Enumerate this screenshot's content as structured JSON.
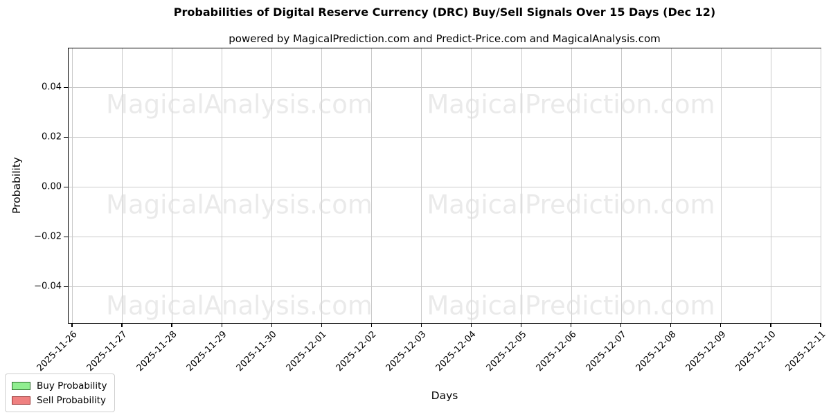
{
  "title": "Probabilities of Digital Reserve Currency (DRC) Buy/Sell Signals Over 15 Days (Dec 12)",
  "subtitle": "powered by MagicalPrediction.com and Predict-Price.com and MagicalAnalysis.com",
  "chart_data": {
    "type": "line",
    "x": [
      "2025-11-26",
      "2025-11-27",
      "2025-11-28",
      "2025-11-29",
      "2025-11-30",
      "2025-12-01",
      "2025-12-02",
      "2025-12-03",
      "2025-12-04",
      "2025-12-05",
      "2025-12-06",
      "2025-12-07",
      "2025-12-08",
      "2025-12-09",
      "2025-12-10",
      "2025-12-11"
    ],
    "series": [
      {
        "name": "Buy Probability",
        "values": [],
        "fill_color": "#90ee90",
        "edge_color": "#2c6b2c"
      },
      {
        "name": "Sell Probability",
        "values": [],
        "fill_color": "#ef8080",
        "edge_color": "#993030"
      }
    ],
    "note": "plot area is empty - no data lines are drawn for either series",
    "xlabel": "Days",
    "ylabel": "Probability",
    "yticks": [
      0.04,
      0.02,
      0.0,
      -0.02,
      -0.04
    ],
    "ytick_labels": [
      "0.04",
      "0.02",
      "0.00",
      "−0.02",
      "−0.04"
    ],
    "ylim": [
      -0.055,
      0.056
    ],
    "grid": true,
    "grid_color": "#c9c9c9",
    "legend_position": "lower left"
  },
  "watermarks": [
    "MagicalAnalysis.com",
    "MagicalPrediction.com"
  ]
}
